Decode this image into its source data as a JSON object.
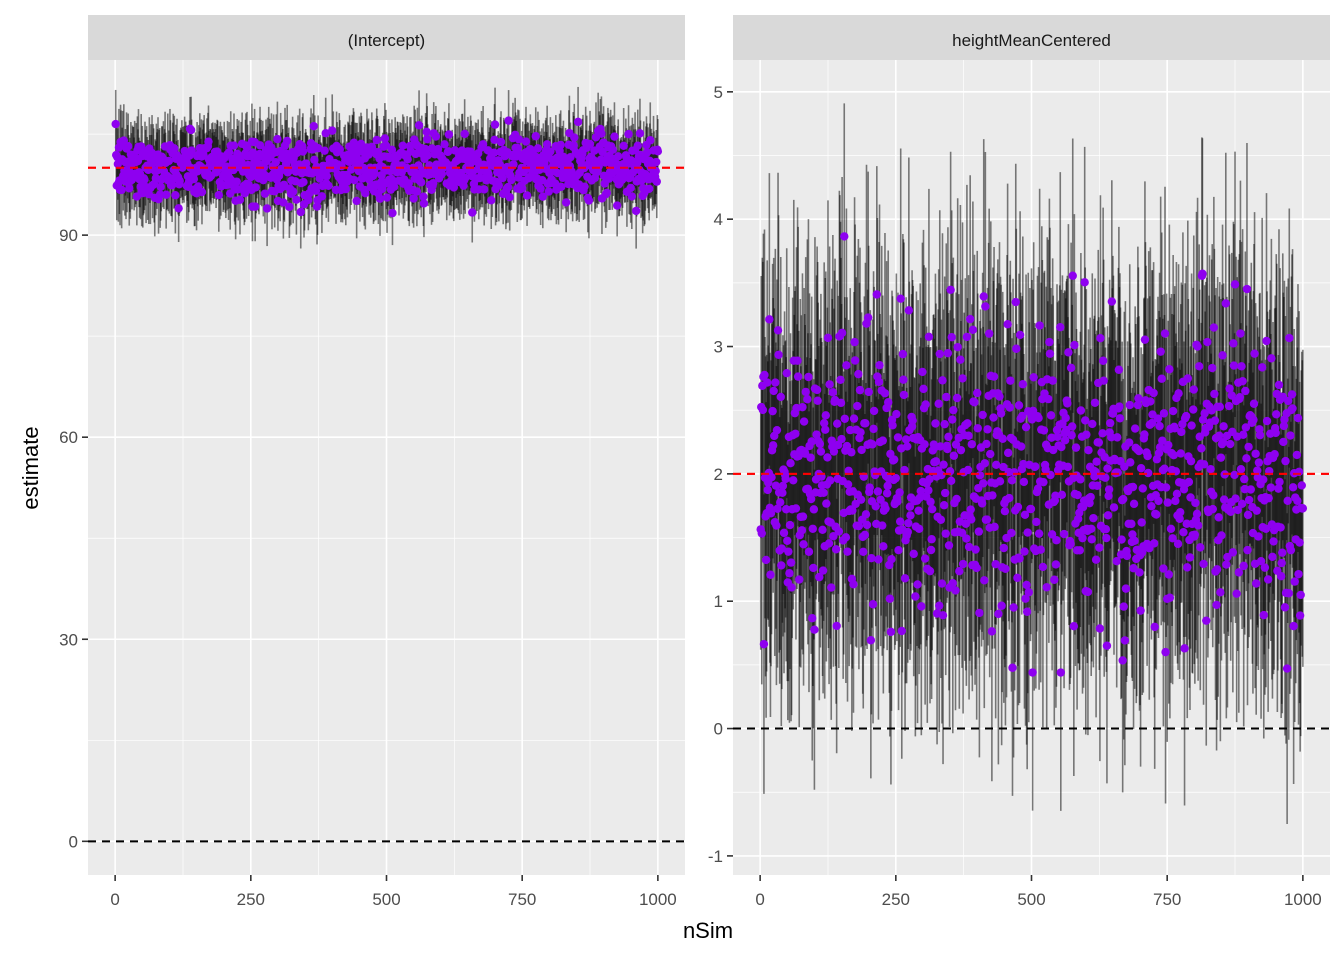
{
  "chart_data": {
    "type": "scatter",
    "xlabel": "nSim",
    "ylabel": "estimate",
    "colors": {
      "point": "#8E00F0",
      "errorbar": "#000000",
      "true_value_line": "#FF0000",
      "zero_line": "#000000",
      "panel_background": "#EBEBEB",
      "strip_background": "#D9D9D9",
      "grid": "#FFFFFF"
    },
    "panels": [
      {
        "strip": "(Intercept)",
        "xlim": [
          -50,
          1050
        ],
        "ylim": [
          -5,
          116
        ],
        "x_ticks": [
          0,
          250,
          500,
          750,
          1000
        ],
        "y_ticks": [
          0,
          30,
          60,
          90
        ],
        "true_value": 100,
        "zero_line": 0,
        "n_points": 1000,
        "estimate_mean": 100,
        "estimate_range": [
          92.5,
          107
        ],
        "interval_range": [
          88,
          112
        ],
        "interval_halfwidth": 5
      },
      {
        "strip": "heightMeanCentered",
        "xlim": [
          -50,
          1050
        ],
        "ylim": [
          -1.15,
          5.25
        ],
        "x_ticks": [
          0,
          250,
          500,
          750,
          1000
        ],
        "y_ticks": [
          -1,
          0,
          1,
          2,
          3,
          4,
          5
        ],
        "true_value": 2,
        "zero_line": 0,
        "n_points": 1000,
        "estimate_mean": 2,
        "estimate_range": [
          0.44,
          4.0
        ],
        "interval_range": [
          -0.87,
          5.0
        ],
        "interval_halfwidth": 1.1
      }
    ]
  }
}
